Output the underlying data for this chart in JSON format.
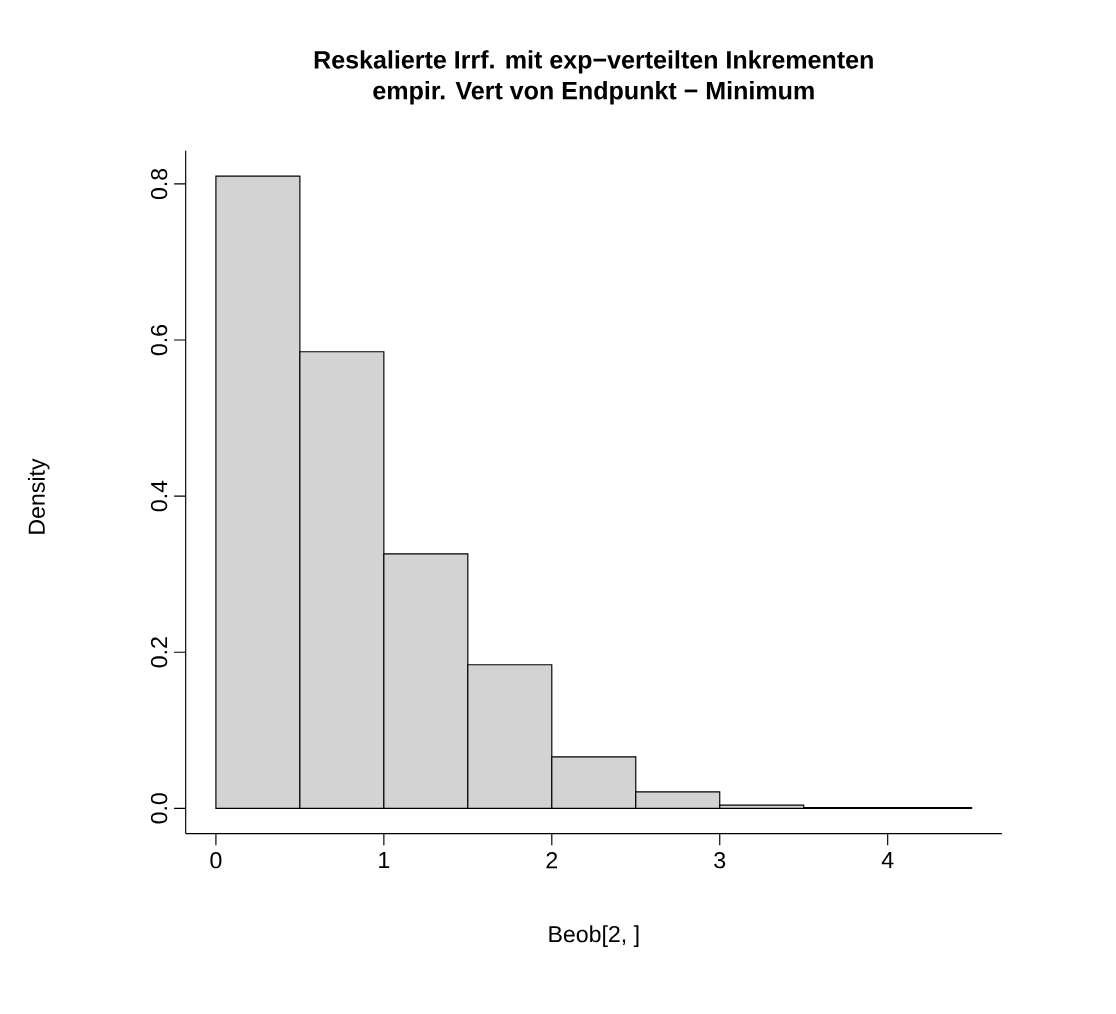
{
  "chart_data": {
    "type": "histogram",
    "title": "Reskalierte Irrf. mit exp−verteilten Inkrementen\nempir. Vert von Endpunkt − Minimum",
    "xlabel": "Beob[2, ]",
    "ylabel": "Density",
    "bins": [
      0,
      0.5,
      1,
      1.5,
      2,
      2.5,
      3,
      3.5,
      4,
      4.5
    ],
    "values": [
      0.81,
      0.585,
      0.326,
      0.184,
      0.066,
      0.021,
      0.004,
      0.001,
      0.001
    ],
    "color": "#d3d3d3",
    "xlim": [
      -0.18,
      4.68
    ],
    "ylim": [
      -0.0324,
      0.8424
    ],
    "xticks": [
      0,
      1,
      2,
      3,
      4
    ],
    "yticks": [
      {
        "value": 0,
        "label": "0.0"
      },
      0.2,
      0.4,
      0.6,
      0.8
    ]
  }
}
